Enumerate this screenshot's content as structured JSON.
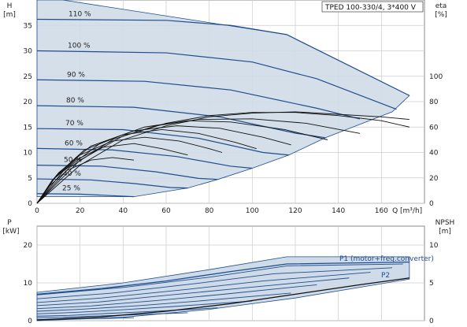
{
  "chart_data": [
    {
      "type": "line",
      "title": "TPED 100-330/4, 3*400 V",
      "xlabel": "Q [m³/h]",
      "ylabel_left": "H\n[m]",
      "ylabel_right": "eta\n[%]",
      "xlim": [
        0,
        180
      ],
      "ylim_left": [
        0,
        40
      ],
      "ylim_right": [
        0,
        160
      ],
      "x_ticks": [
        "0",
        "20",
        "40",
        "60",
        "80",
        "100",
        "120",
        "140",
        "160"
      ],
      "y_ticks_left": [
        "0",
        "5",
        "10",
        "15",
        "20",
        "25",
        "30",
        "35"
      ],
      "y_ticks_right": [
        "0",
        "20",
        "40",
        "60",
        "80",
        "100"
      ],
      "grid": true,
      "colors": {
        "curve": "#1f4e8c",
        "fill": "#cfdbe8",
        "eff_curve": "#111111",
        "grid": "#cccccc"
      },
      "head_curves": [
        {
          "label": "110 %",
          "points": [
            [
              0,
              36.2
            ],
            [
              60,
              36
            ],
            [
              90,
              35
            ],
            [
              116,
              33.2
            ],
            [
              173,
              21.2
            ]
          ]
        },
        {
          "label": "100 %",
          "points": [
            [
              0,
              30
            ],
            [
              60,
              29.6
            ],
            [
              100,
              27.8
            ],
            [
              130,
              24.5
            ],
            [
              167,
              18.5
            ]
          ]
        },
        {
          "label": "90 %",
          "points": [
            [
              0,
              24.3
            ],
            [
              50,
              24
            ],
            [
              90,
              22.3
            ],
            [
              130,
              18.7
            ],
            [
              150,
              16.6
            ]
          ]
        },
        {
          "label": "80 %",
          "points": [
            [
              0,
              19.2
            ],
            [
              45,
              18.9
            ],
            [
              85,
              17
            ],
            [
              120,
              13.8
            ],
            [
              134,
              12.9
            ]
          ]
        },
        {
          "label": "70 %",
          "points": [
            [
              0,
              14.7
            ],
            [
              40,
              14.5
            ],
            [
              75,
              12.8
            ],
            [
              105,
              10
            ],
            [
              117,
              9.5
            ]
          ]
        },
        {
          "label": "60 %",
          "points": [
            [
              0,
              10.8
            ],
            [
              35,
              10.5
            ],
            [
              65,
              9.2
            ],
            [
              90,
              7.3
            ],
            [
              100,
              6.9
            ]
          ]
        },
        {
          "label": "50 %",
          "points": [
            [
              0,
              7.5
            ],
            [
              30,
              7.3
            ],
            [
              55,
              6.2
            ],
            [
              75,
              4.9
            ],
            [
              84,
              4.7
            ]
          ]
        },
        {
          "label": "40 %",
          "points": [
            [
              0,
              4.8
            ],
            [
              25,
              4.6
            ],
            [
              45,
              3.9
            ],
            [
              62,
              3.1
            ],
            [
              70,
              3
            ]
          ]
        },
        {
          "label": "25 %",
          "points": [
            [
              0,
              1.9
            ],
            [
              20,
              1.8
            ],
            [
              35,
              1.5
            ],
            [
              45,
              1.3
            ]
          ]
        }
      ],
      "head_envelope": [
        [
          0,
          40
        ],
        [
          12,
          40
        ],
        [
          116,
          33.2
        ],
        [
          173,
          21.2
        ],
        [
          165,
          18
        ],
        [
          134,
          12.9
        ],
        [
          117,
          9.5
        ],
        [
          100,
          6.9
        ],
        [
          84,
          4.7
        ],
        [
          70,
          3
        ],
        [
          45,
          1.3
        ],
        [
          0,
          1.3
        ]
      ],
      "efficiency_curves": [
        {
          "label": "",
          "points": [
            [
              0,
              0
            ],
            [
              20,
              30
            ],
            [
              40,
              50
            ],
            [
              60,
              61
            ],
            [
              80,
              68
            ],
            [
              100,
              71
            ],
            [
              120,
              72
            ],
            [
              140,
              70
            ],
            [
              160,
              68
            ],
            [
              173,
              66
            ]
          ]
        },
        {
          "label": "",
          "points": [
            [
              0,
              0
            ],
            [
              20,
              34
            ],
            [
              40,
              53
            ],
            [
              60,
              63
            ],
            [
              80,
              69
            ],
            [
              100,
              71.5
            ],
            [
              120,
              71.5
            ],
            [
              140,
              69
            ],
            [
              160,
              65
            ],
            [
              173,
              60
            ]
          ]
        },
        {
          "label": "",
          "points": [
            [
              0,
              0
            ],
            [
              15,
              28
            ],
            [
              35,
              50
            ],
            [
              55,
              61
            ],
            [
              75,
              66
            ],
            [
              100,
              66.5
            ],
            [
              125,
              63
            ],
            [
              150,
              55
            ]
          ]
        },
        {
          "label": "",
          "points": [
            [
              0,
              0
            ],
            [
              12,
              25
            ],
            [
              30,
              48
            ],
            [
              50,
              60
            ],
            [
              70,
              65
            ],
            [
              90,
              64
            ],
            [
              115,
              58
            ],
            [
              135,
              50
            ]
          ]
        },
        {
          "label": "",
          "points": [
            [
              0,
              0
            ],
            [
              10,
              24
            ],
            [
              25,
              45
            ],
            [
              45,
              57
            ],
            [
              65,
              61
            ],
            [
              85,
              59
            ],
            [
              105,
              52
            ],
            [
              118,
              46
            ]
          ]
        },
        {
          "label": "",
          "points": [
            [
              0,
              0
            ],
            [
              9,
              22
            ],
            [
              22,
              42
            ],
            [
              40,
              54
            ],
            [
              58,
              58
            ],
            [
              75,
              55
            ],
            [
              92,
              48
            ],
            [
              102,
              43
            ]
          ]
        },
        {
          "label": "",
          "points": [
            [
              0,
              0
            ],
            [
              8,
              20
            ],
            [
              20,
              38
            ],
            [
              35,
              49
            ],
            [
              50,
              52
            ],
            [
              66,
              49
            ],
            [
              80,
              43
            ],
            [
              86,
              40
            ]
          ]
        },
        {
          "label": "",
          "points": [
            [
              0,
              0
            ],
            [
              7,
              18
            ],
            [
              18,
              34
            ],
            [
              30,
              44
            ],
            [
              45,
              47
            ],
            [
              58,
              43
            ],
            [
              70,
              38
            ]
          ]
        },
        {
          "label": "",
          "points": [
            [
              0,
              0
            ],
            [
              6,
              14
            ],
            [
              14,
              26
            ],
            [
              25,
              34
            ],
            [
              35,
              36
            ],
            [
              45,
              34
            ]
          ]
        }
      ]
    },
    {
      "type": "line",
      "title": "",
      "xlabel": "",
      "ylabel_left": "P\n[kW]",
      "ylabel_right": "NPSH\n[m]",
      "xlim": [
        0,
        180
      ],
      "ylim_left": [
        0,
        25
      ],
      "ylim_right": [
        0,
        12.5
      ],
      "y_ticks_left": [
        "0",
        "10",
        "20"
      ],
      "y_ticks_right": [
        "0",
        "5",
        "10"
      ],
      "grid": true,
      "series": [
        {
          "name": "P1 (motor+freq.converter)",
          "points": [
            [
              0,
              7
            ],
            [
              30,
              8.5
            ],
            [
              60,
              10.5
            ],
            [
              90,
              13
            ],
            [
              116,
              15
            ],
            [
              173,
              15.5
            ]
          ]
        },
        {
          "name": "P2",
          "points": [
            [
              0,
              0.2
            ],
            [
              30,
              1
            ],
            [
              60,
              2.5
            ],
            [
              90,
              4.5
            ],
            [
              120,
              7
            ],
            [
              150,
              9.5
            ],
            [
              173,
              11.3
            ]
          ]
        }
      ],
      "power_envelope": [
        [
          0,
          7.5
        ],
        [
          40,
          10
        ],
        [
          80,
          13.5
        ],
        [
          116,
          16.9
        ],
        [
          173,
          16.9
        ],
        [
          173,
          11
        ],
        [
          120,
          6
        ],
        [
          80,
          3
        ],
        [
          40,
          0.9
        ],
        [
          0,
          0
        ]
      ],
      "speed_power_curves": [
        {
          "points": [
            [
              0,
              6.8
            ],
            [
              40,
              8.8
            ],
            [
              80,
              11.5
            ],
            [
              116,
              14.5
            ],
            [
              170,
              15
            ]
          ]
        },
        {
          "points": [
            [
              0,
              5.8
            ],
            [
              35,
              7.3
            ],
            [
              75,
              9.9
            ],
            [
              110,
              12.4
            ],
            [
              165,
              14
            ]
          ]
        },
        {
          "points": [
            [
              0,
              4.8
            ],
            [
              30,
              6
            ],
            [
              70,
              8.3
            ],
            [
              105,
              10.5
            ],
            [
              155,
              12.8
            ]
          ]
        },
        {
          "points": [
            [
              0,
              4
            ],
            [
              28,
              4.9
            ],
            [
              60,
              6.7
            ],
            [
              95,
              8.6
            ],
            [
              145,
              11.3
            ]
          ]
        },
        {
          "points": [
            [
              0,
              3.2
            ],
            [
              25,
              3.9
            ],
            [
              55,
              5.3
            ],
            [
              85,
              6.9
            ],
            [
              130,
              9.5
            ]
          ]
        },
        {
          "points": [
            [
              0,
              2.5
            ],
            [
              20,
              3
            ],
            [
              48,
              4
            ],
            [
              75,
              5.2
            ],
            [
              118,
              7.3
            ]
          ]
        },
        {
          "points": [
            [
              0,
              1.8
            ],
            [
              18,
              2.2
            ],
            [
              40,
              2.9
            ],
            [
              62,
              3.7
            ],
            [
              100,
              5.2
            ]
          ]
        },
        {
          "points": [
            [
              0,
              1.2
            ],
            [
              15,
              1.4
            ],
            [
              32,
              1.9
            ],
            [
              52,
              2.4
            ],
            [
              84,
              3.4
            ]
          ]
        },
        {
          "points": [
            [
              0,
              0.8
            ],
            [
              12,
              0.9
            ],
            [
              26,
              1.2
            ],
            [
              42,
              1.5
            ],
            [
              70,
              2.1
            ]
          ]
        },
        {
          "points": [
            [
              0,
              0.3
            ],
            [
              10,
              0.35
            ],
            [
              20,
              0.45
            ],
            [
              32,
              0.6
            ],
            [
              45,
              0.8
            ]
          ]
        }
      ]
    }
  ]
}
